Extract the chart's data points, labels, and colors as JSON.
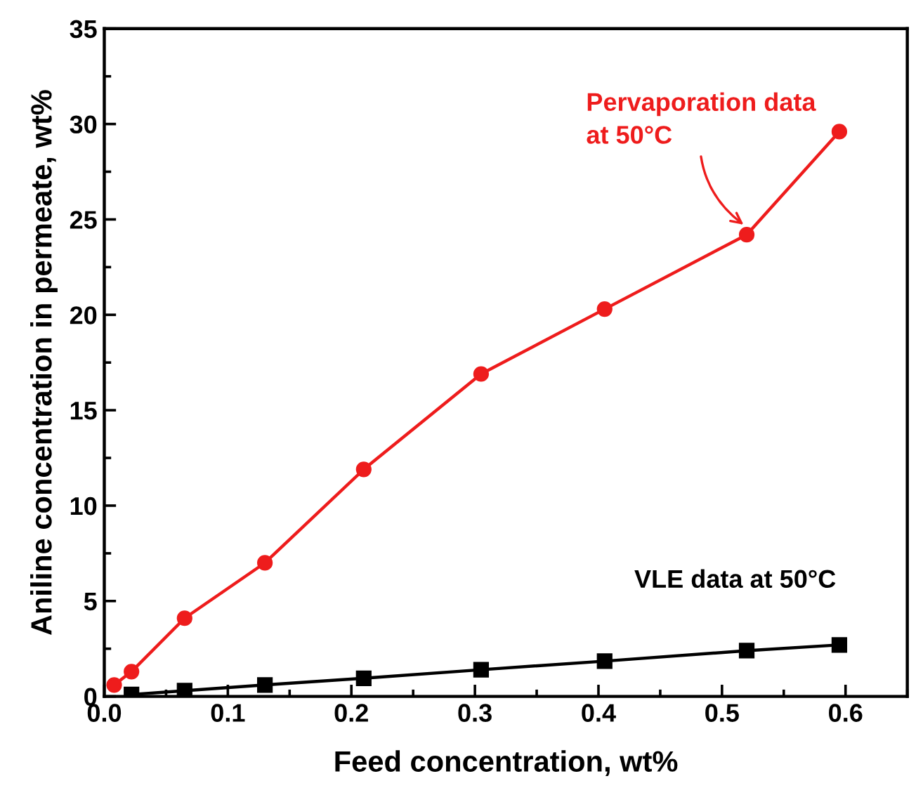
{
  "chart_data": {
    "type": "line",
    "xlabel": "Feed concentration, wt%",
    "ylabel": "Aniline concentration in permeate, wt%",
    "xlim": [
      0,
      0.65
    ],
    "xticks": [
      {
        "value": 0,
        "label": "0.0"
      },
      0.1,
      0.2,
      0.3,
      0.4,
      0.5,
      0.6
    ],
    "ylim": [
      0,
      35
    ],
    "yticks": [
      0,
      5,
      10,
      15,
      20,
      25,
      30,
      35
    ],
    "grid": false,
    "line_style": "solid",
    "series": [
      {
        "name": "Pervaporation data\nat 50°C",
        "color": "#ee1c1c",
        "marker": "circle",
        "x": [
          0.008,
          0.022,
          0.065,
          0.13,
          0.21,
          0.305,
          0.405,
          0.52,
          0.595
        ],
        "values": [
          0.6,
          1.3,
          4.1,
          7.0,
          11.9,
          16.9,
          20.3,
          24.2,
          29.6
        ]
      },
      {
        "name": "VLE data at 50°C",
        "color": "#000000",
        "marker": "square",
        "x": [
          0.022,
          0.065,
          0.13,
          0.21,
          0.305,
          0.405,
          0.52,
          0.595
        ],
        "values": [
          0.1,
          0.3,
          0.6,
          0.95,
          1.4,
          1.85,
          2.4,
          2.7
        ]
      }
    ]
  }
}
